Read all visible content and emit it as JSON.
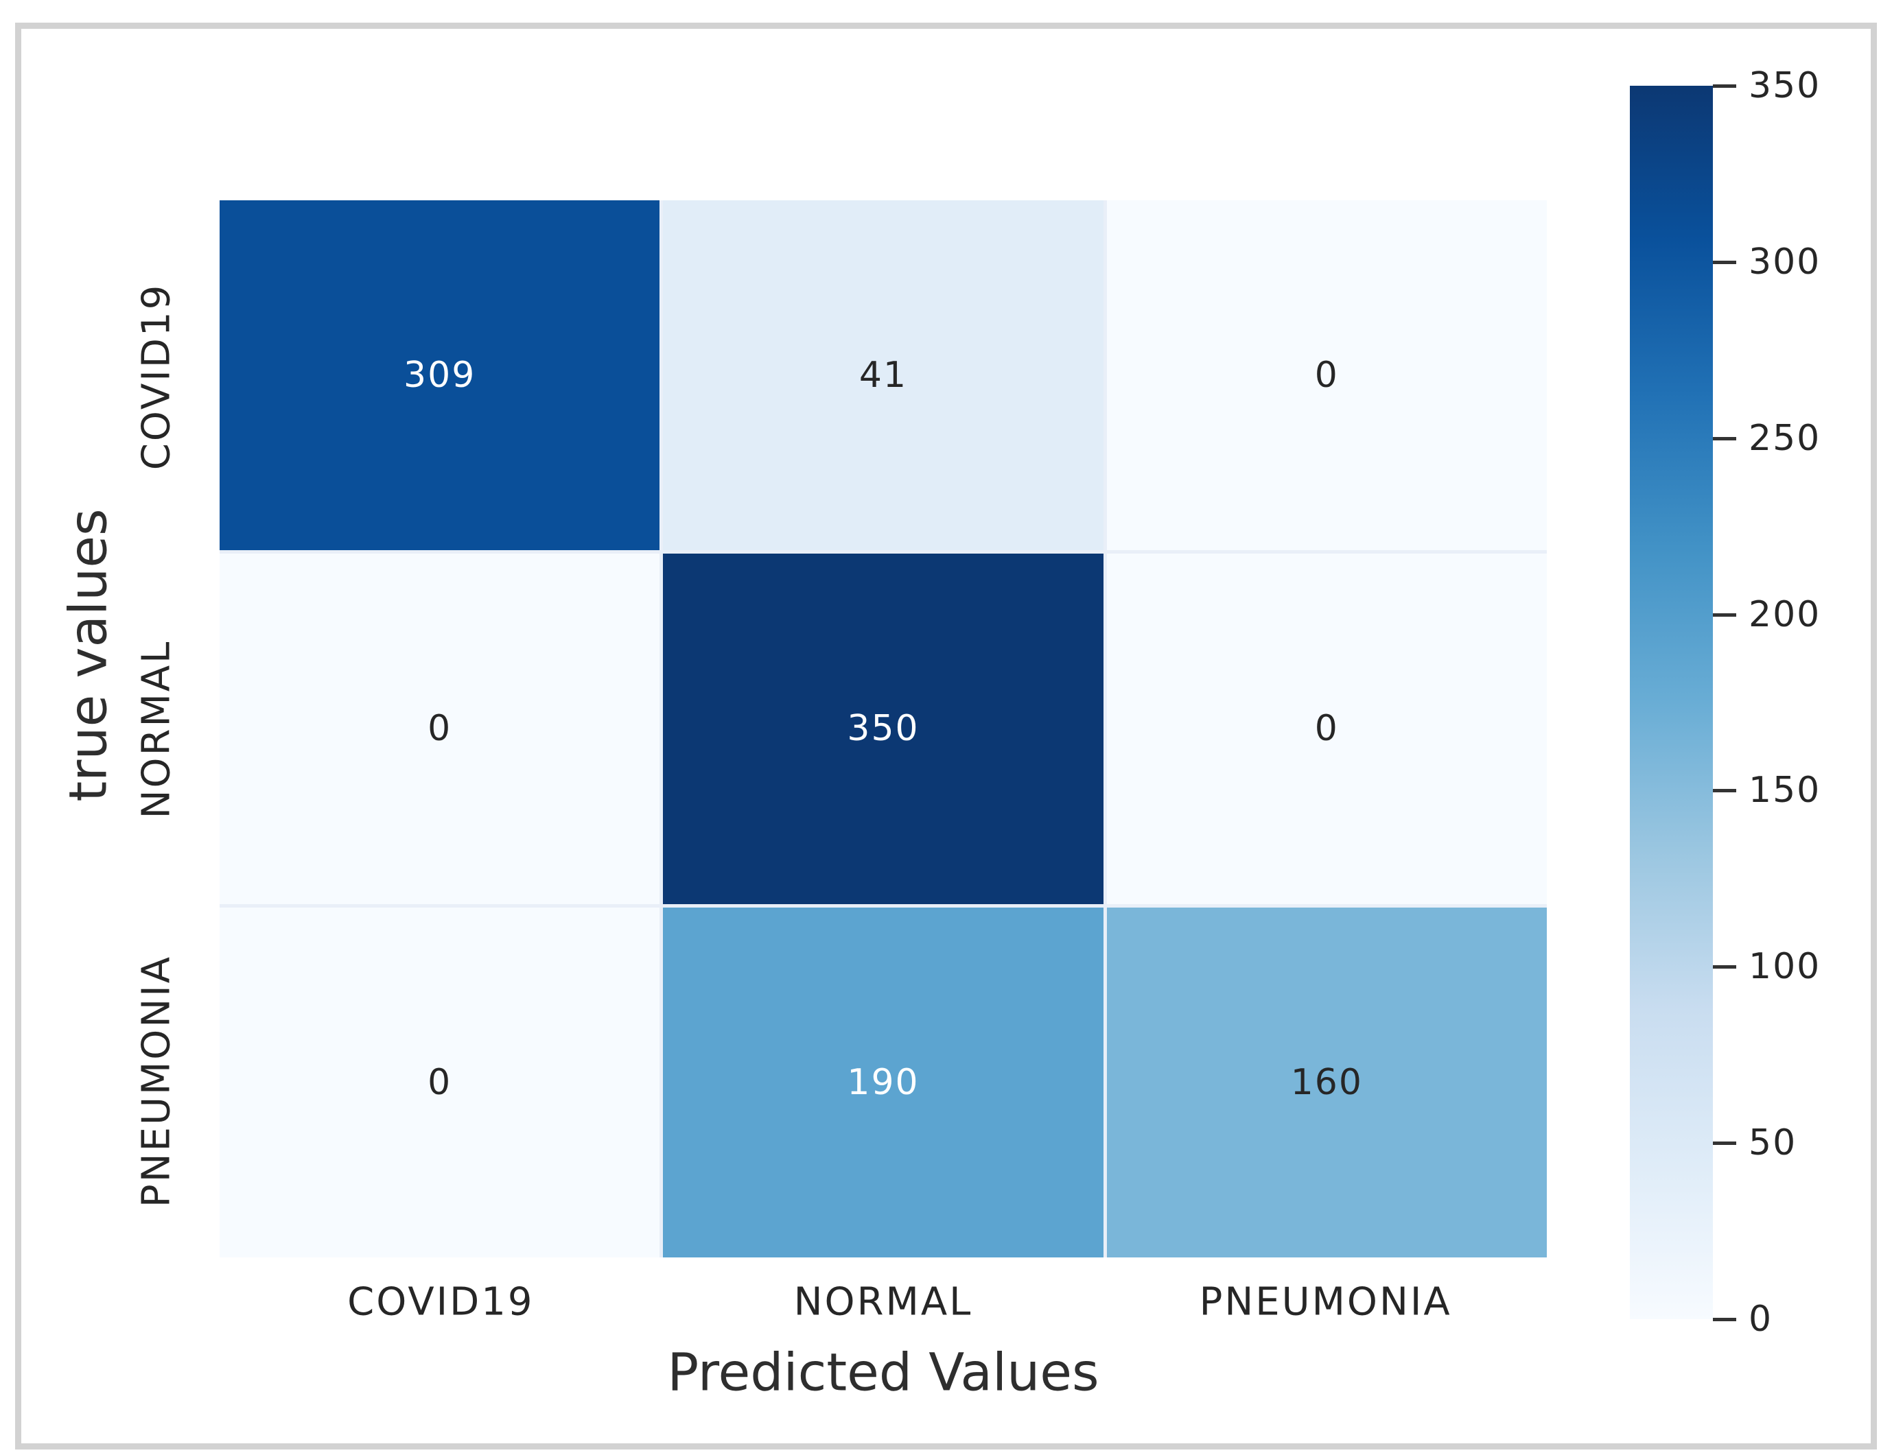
{
  "chart_data": {
    "type": "heatmap",
    "title": "",
    "xlabel": "Predicted Values",
    "ylabel": "true values",
    "x_categories": [
      "COVID19",
      "NORMAL",
      "PNEUMONIA"
    ],
    "y_categories": [
      "COVID19",
      "NORMAL",
      "PNEUMONIA"
    ],
    "matrix": [
      [
        309,
        41,
        0
      ],
      [
        0,
        350,
        0
      ],
      [
        0,
        190,
        160
      ]
    ],
    "vmin": 0,
    "vmax": 350,
    "colorbar_ticks": [
      350,
      300,
      250,
      200,
      150,
      100,
      50,
      0
    ],
    "colormap": "Blues",
    "legend_position": "right-colorbar",
    "grid": false
  },
  "colors": {
    "annotation_dark": "#262626",
    "annotation_light": "#ffffff",
    "axis_label": "#2e2e2e",
    "frame": "#d2d2d2",
    "cell_gap": "#e9eff8",
    "blues_stops": [
      [
        0.0,
        "#f7fbff"
      ],
      [
        0.125,
        "#dfecf8"
      ],
      [
        0.25,
        "#c9ddf0"
      ],
      [
        0.375,
        "#9cc7e1"
      ],
      [
        0.5,
        "#69add5"
      ],
      [
        0.625,
        "#4292c6"
      ],
      [
        0.75,
        "#2171b5"
      ],
      [
        0.875,
        "#0a519c"
      ],
      [
        1.0,
        "#0c3873"
      ]
    ]
  }
}
